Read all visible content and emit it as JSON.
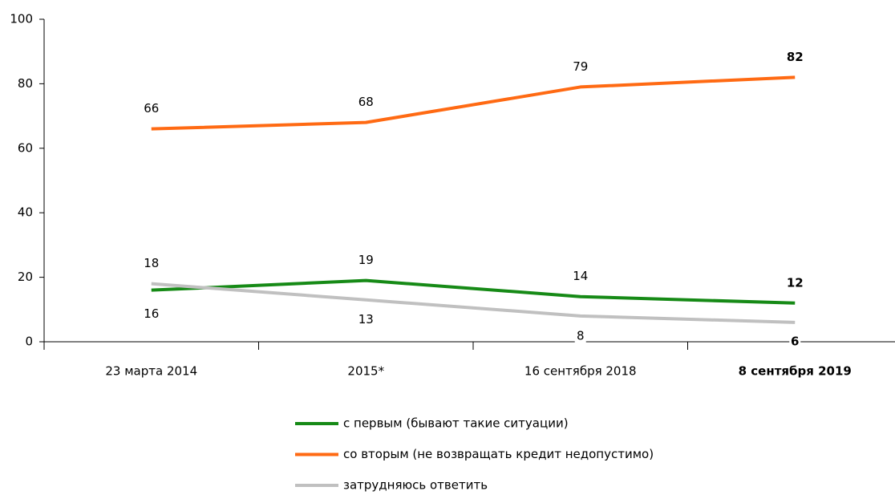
{
  "chart_data": {
    "type": "line",
    "categories": [
      "23 марта 2014",
      "2015*",
      "16 сентября 2018",
      "8 сентября 2019"
    ],
    "series": [
      {
        "name": "с первым (бывают такие ситуации)",
        "color": "#168a16",
        "values": [
          16,
          19,
          14,
          12
        ]
      },
      {
        "name": "со вторым (не возвращать кредит недопустимо)",
        "color": "#ff6a13",
        "values": [
          66,
          68,
          79,
          82
        ]
      },
      {
        "name": "затрудняюсь ответить",
        "color": "#c0c0c0",
        "values": [
          18,
          13,
          8,
          6
        ]
      }
    ],
    "ylim": [
      0,
      100
    ],
    "yticks": [
      0,
      20,
      40,
      60,
      80,
      100
    ]
  }
}
